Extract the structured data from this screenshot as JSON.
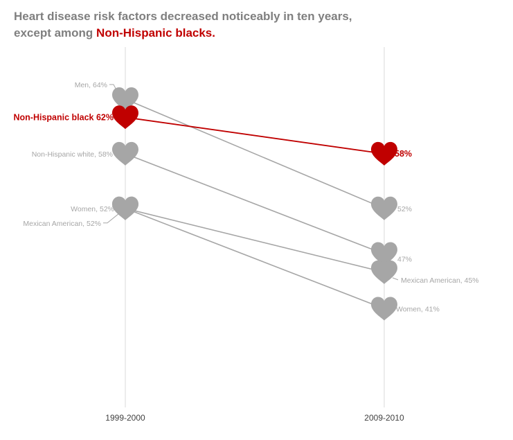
{
  "title": {
    "line1": "Heart disease risk factors decreased noticeably in ten years,",
    "line2_prefix": "except among ",
    "line2_highlight": "Non-Hispanic blacks."
  },
  "colors": {
    "grey": "#a6a6a6",
    "line_grey": "#a6a6a6",
    "highlight": "#c00000",
    "axis": "#d9d9d9",
    "title": "#7f7f7f"
  },
  "chart_data": {
    "type": "line",
    "subtype": "slope",
    "marker": "heart-icon",
    "categories": [
      "1999-2000",
      "2009-2010"
    ],
    "series": [
      {
        "name": "Men",
        "values": [
          64,
          52
        ],
        "highlight": false,
        "labels": [
          "Men, 64%",
          "52%"
        ]
      },
      {
        "name": "Non-Hispanic black",
        "values": [
          62,
          58
        ],
        "highlight": true,
        "labels": [
          "Non-Hispanic black 62%",
          "58%"
        ]
      },
      {
        "name": "Non-Hispanic white",
        "values": [
          58,
          47
        ],
        "highlight": false,
        "labels": [
          "Non-Hispanic white, 58%",
          "47%"
        ]
      },
      {
        "name": "Women",
        "values": [
          52,
          41
        ],
        "highlight": false,
        "labels": [
          "Women, 52%",
          "Women, 41%"
        ]
      },
      {
        "name": "Mexican American",
        "values": [
          52,
          45
        ],
        "highlight": false,
        "labels": [
          "Mexican American, 52%",
          "Mexican American, 45%"
        ]
      }
    ]
  }
}
